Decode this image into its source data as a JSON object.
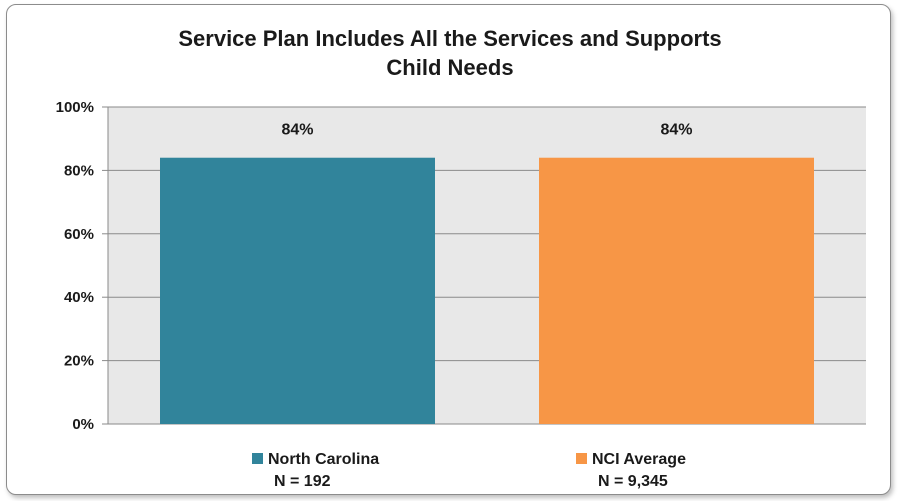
{
  "chart_data": {
    "type": "bar",
    "title_lines": [
      "Service Plan Includes All the Services and Supports",
      "Child Needs"
    ],
    "categories": [
      "North Carolina",
      "NCI Average"
    ],
    "values": [
      84,
      84
    ],
    "value_labels": [
      "84%",
      "84%"
    ],
    "colors": [
      "#31849b",
      "#f79646"
    ],
    "legend": [
      {
        "name": "North Carolina",
        "n": "N = 192",
        "color": "#31849b"
      },
      {
        "name": "NCI Average",
        "n": "N = 9,345",
        "color": "#f79646"
      }
    ],
    "ylim": [
      0,
      100
    ],
    "yticks": [
      0,
      20,
      40,
      60,
      80,
      100
    ],
    "ytick_labels": [
      "0%",
      "20%",
      "40%",
      "60%",
      "80%",
      "100%"
    ],
    "grid": true,
    "legend_position": "bottom",
    "plot_background": "#e8e8e8"
  }
}
